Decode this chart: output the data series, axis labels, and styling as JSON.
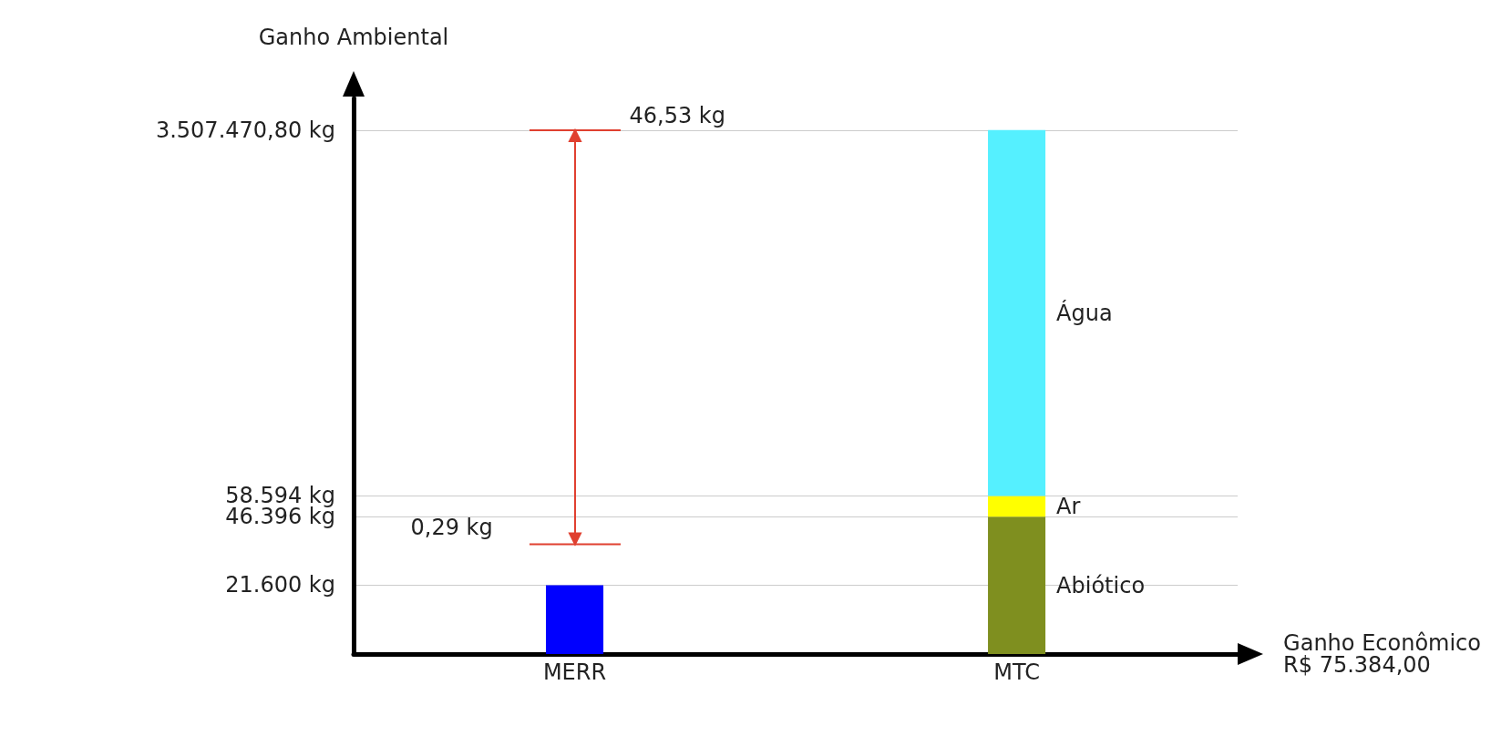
{
  "chart_data": {
    "type": "bar",
    "ylabel": "Ganho Ambiental",
    "xlabel": "Ganho Econômico\nR$ 75.384,00",
    "categories": [
      "MERR",
      "MTC"
    ],
    "stacked": true,
    "log": "y",
    "ylim": [
      10000,
      5000000
    ],
    "yticks": [
      {
        "value": 21600,
        "label": "21.600 kg"
      },
      {
        "value": 46396,
        "label": "46.396 kg"
      },
      {
        "value": 58594,
        "label": "58.594 kg"
      },
      {
        "value": 3507470.8,
        "label": "3.507.470,80 kg"
      }
    ],
    "grid": "y",
    "legend": false,
    "series": [
      {
        "color": "#0000ff",
        "values": [
          21600,
          null
        ]
      },
      {
        "name": "Abiótico",
        "color": "#7f8f1f",
        "values": [
          null,
          46396
        ]
      },
      {
        "name": "Ar",
        "color": "#ffff00",
        "values": [
          null,
          12198
        ]
      },
      {
        "name": "Água",
        "color": "#55f0ff",
        "values": [
          null,
          3448876.8
        ]
      }
    ],
    "annotations": [
      "46,53 kg",
      "0,29 kg"
    ]
  }
}
